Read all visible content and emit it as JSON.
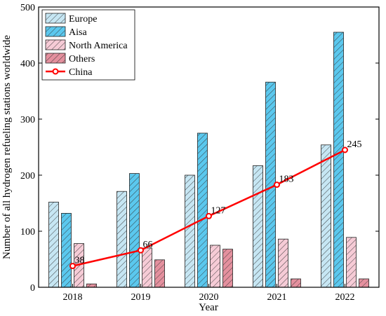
{
  "chart_data": {
    "type": "bar",
    "xlabel": "Year",
    "ylabel": "Number of all hydrogen refueling stations worldwide",
    "categories": [
      "2018",
      "2019",
      "2020",
      "2021",
      "2022"
    ],
    "ylim": [
      0,
      500
    ],
    "yticks": [
      "0",
      "100",
      "200",
      "300",
      "400",
      "500"
    ],
    "grid": false,
    "legend_position": "top-left",
    "series": [
      {
        "name": "Europe",
        "type": "bar",
        "values": [
          152,
          171,
          200,
          217,
          254
        ],
        "color": "#c6e6f3",
        "hatch": "diagonal"
      },
      {
        "name": "Aisa",
        "type": "bar",
        "values": [
          132,
          203,
          275,
          366,
          455
        ],
        "color": "#5bc8ee",
        "hatch": "diagonal"
      },
      {
        "name": "North America",
        "type": "bar",
        "values": [
          78,
          70,
          75,
          86,
          89
        ],
        "color": "#f6cbd6",
        "hatch": "diagonal"
      },
      {
        "name": "Others",
        "type": "bar",
        "values": [
          6,
          49,
          68,
          15,
          15
        ],
        "color": "#e4909e",
        "hatch": "diagonal"
      },
      {
        "name": "China",
        "type": "line",
        "values": [
          38,
          66,
          127,
          183,
          245
        ],
        "labels": [
          "38",
          "66",
          "127",
          "183",
          "245"
        ],
        "color": "#ff0000"
      }
    ]
  }
}
